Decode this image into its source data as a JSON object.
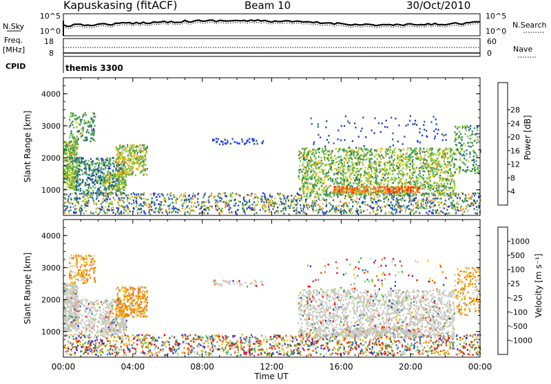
{
  "header": {
    "station": "Kapuskasing (fitACF)",
    "beam": "Beam 10",
    "date": "30/Oct/2010"
  },
  "noise_panel": {
    "left_label": "N.Sky",
    "right_label": "N.Search",
    "left_ticks": [
      "10^5",
      "10^0"
    ],
    "right_ticks": [
      "10^5",
      "10^0"
    ]
  },
  "freq_panel": {
    "left_label_top": "Freq.",
    "left_label_bottom": "[MHz]",
    "right_label": "Nave",
    "left_ticks": [
      "18",
      "8"
    ],
    "right_ticks": [
      "60",
      "0"
    ]
  },
  "cpid": {
    "label": "CPID",
    "value": "themis 3300"
  },
  "x_axis": {
    "label": "Time UT",
    "ticks": [
      "00:00",
      "04:00",
      "08:00",
      "12:00",
      "16:00",
      "20:00",
      "00:00"
    ]
  },
  "chart_data": [
    {
      "type": "heatmap",
      "ylabel": "Slant Range [km]",
      "yticks": [
        "1000",
        "2000",
        "3000",
        "4000"
      ],
      "ylim": [
        200,
        4500
      ],
      "xlim_hours": [
        0,
        24
      ],
      "colorbar": {
        "label": "Power [dB]",
        "ticks": [
          "4",
          "8",
          "12",
          "16",
          "20",
          "24",
          "28"
        ],
        "colors": [
          "#1f3fff",
          "#2040b0",
          "#2b6a6a",
          "#3a9a55",
          "#70c040",
          "#d8d020",
          "#f0a020",
          "#f07010",
          "#ff2000"
        ]
      }
    },
    {
      "type": "heatmap",
      "ylabel": "Slant Range [km]",
      "yticks": [
        "1000",
        "2000",
        "3000",
        "4000"
      ],
      "ylim": [
        200,
        4500
      ],
      "xlim_hours": [
        0,
        24
      ],
      "colorbar": {
        "label": "Velocity [m s⁻¹]",
        "ticks": [
          "1000",
          "500",
          "100",
          "25",
          "-25",
          "-100",
          "-500",
          "-1000"
        ],
        "colors": [
          "#2a2ad0",
          "#2a6ab0",
          "#3ab040",
          "#80d050",
          "#c8c8c0",
          "#f0c000",
          "#f08000",
          "#f04000",
          "#ff0000"
        ]
      }
    }
  ]
}
